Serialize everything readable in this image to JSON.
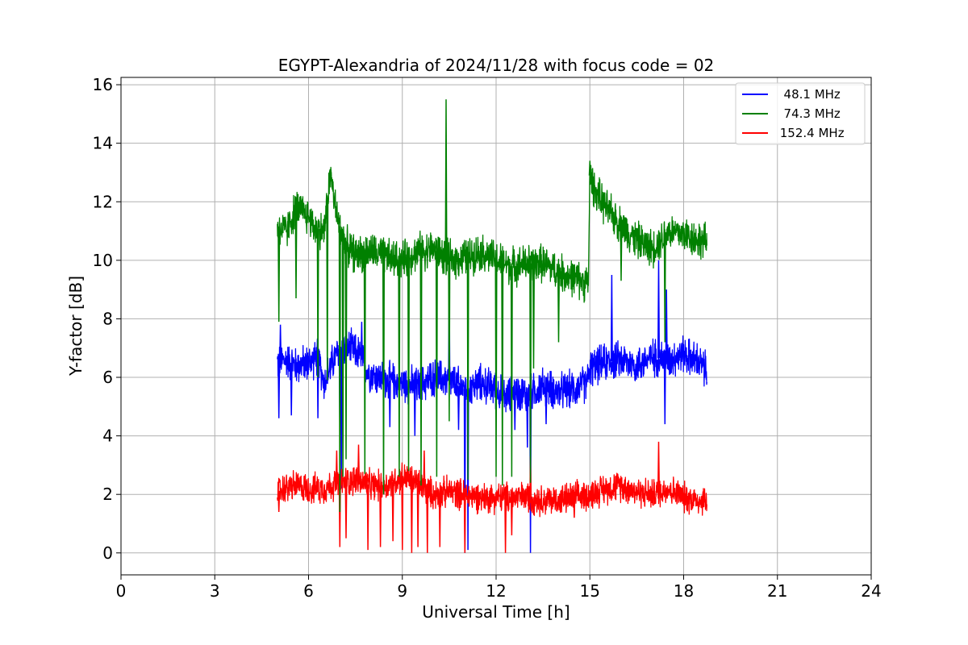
{
  "chart_data": {
    "type": "line",
    "title": "EGYPT-Alexandria of 2024/11/28 with focus code = 02",
    "xlabel": "Universal Time [h]",
    "ylabel": "Y-factor [dB]",
    "xlim": [
      0,
      24
    ],
    "ylim": [
      -0.75,
      16.25
    ],
    "xticks": [
      0,
      3,
      6,
      9,
      12,
      15,
      18,
      21,
      24
    ],
    "xtick_labels": [
      "0",
      "3",
      "6",
      "9",
      "12",
      "15",
      "18",
      "21",
      "24"
    ],
    "yticks": [
      0,
      2,
      4,
      6,
      8,
      10,
      12,
      14,
      16
    ],
    "ytick_labels": [
      "0",
      "2",
      "4",
      "6",
      "8",
      "10",
      "12",
      "14",
      "16"
    ],
    "grid": true,
    "legend": "top-right",
    "series": [
      {
        "name": "  48.1 MHz",
        "color": "#0000ff",
        "x": [
          5.0,
          5.3,
          5.6,
          6.0,
          6.3,
          6.5,
          6.8,
          7.0,
          7.3,
          7.6,
          7.9,
          8.2,
          8.5,
          9.0,
          9.5,
          10.0,
          10.5,
          11.0,
          11.5,
          12.0,
          12.3,
          12.6,
          13.0,
          13.5,
          14.0,
          14.5,
          14.9,
          15.0,
          15.5,
          16.0,
          16.5,
          17.0,
          17.5,
          18.0,
          18.5,
          18.75
        ],
        "y": [
          6.5,
          6.6,
          6.4,
          6.5,
          6.7,
          5.8,
          6.6,
          6.9,
          7.0,
          6.8,
          6.2,
          6.0,
          5.9,
          5.8,
          5.7,
          6.0,
          5.9,
          5.6,
          5.8,
          5.6,
          5.3,
          5.5,
          5.4,
          5.7,
          5.5,
          5.6,
          5.8,
          6.3,
          6.5,
          6.6,
          6.4,
          6.7,
          6.6,
          6.8,
          6.5,
          6.2
        ],
        "spikes": [
          {
            "x": 5.05,
            "y": 4.6
          },
          {
            "x": 5.1,
            "y": 7.8
          },
          {
            "x": 5.45,
            "y": 4.7
          },
          {
            "x": 6.3,
            "y": 4.6
          },
          {
            "x": 7.0,
            "y": 4.3
          },
          {
            "x": 7.05,
            "y": 2.2
          },
          {
            "x": 7.7,
            "y": 7.9
          },
          {
            "x": 8.6,
            "y": 4.3
          },
          {
            "x": 9.4,
            "y": 4.0
          },
          {
            "x": 10.5,
            "y": 9.4
          },
          {
            "x": 10.8,
            "y": 4.2
          },
          {
            "x": 11.0,
            "y": 0.0
          },
          {
            "x": 11.1,
            "y": 0.1
          },
          {
            "x": 12.6,
            "y": 4.2
          },
          {
            "x": 13.1,
            "y": 0.0
          },
          {
            "x": 13.0,
            "y": 3.6
          },
          {
            "x": 13.6,
            "y": 4.4
          },
          {
            "x": 15.7,
            "y": 9.5
          },
          {
            "x": 17.2,
            "y": 10.0
          },
          {
            "x": 17.4,
            "y": 4.4
          },
          {
            "x": 17.45,
            "y": 9.0
          }
        ]
      },
      {
        "name": "  74.3 MHz",
        "color": "#008000",
        "x": [
          5.0,
          5.3,
          5.6,
          6.0,
          6.2,
          6.5,
          6.7,
          6.9,
          7.2,
          7.5,
          8.0,
          8.5,
          9.0,
          9.5,
          10.0,
          10.5,
          11.0,
          11.5,
          12.0,
          12.5,
          13.0,
          13.5,
          14.0,
          14.5,
          14.95,
          15.0,
          15.2,
          15.5,
          16.0,
          16.5,
          17.0,
          17.5,
          18.0,
          18.5,
          18.75
        ],
        "y": [
          11.1,
          11.0,
          11.8,
          11.5,
          11.1,
          11.0,
          13.0,
          11.5,
          10.5,
          10.2,
          10.3,
          10.1,
          10.0,
          10.3,
          10.4,
          10.0,
          10.1,
          10.3,
          10.0,
          9.8,
          9.9,
          9.9,
          9.6,
          9.4,
          9.2,
          12.9,
          12.3,
          11.8,
          11.2,
          10.7,
          10.4,
          11.0,
          10.9,
          10.7,
          10.6
        ],
        "spikes": [
          {
            "x": 5.05,
            "y": 7.9
          },
          {
            "x": 5.6,
            "y": 8.7
          },
          {
            "x": 6.3,
            "y": 6.0
          },
          {
            "x": 6.6,
            "y": 5.9
          },
          {
            "x": 7.0,
            "y": 1.4
          },
          {
            "x": 7.1,
            "y": 2.6
          },
          {
            "x": 7.2,
            "y": 3.2
          },
          {
            "x": 7.8,
            "y": 2.7
          },
          {
            "x": 8.4,
            "y": 2.0
          },
          {
            "x": 8.9,
            "y": 2.6
          },
          {
            "x": 9.2,
            "y": 2.8
          },
          {
            "x": 9.6,
            "y": 2.3
          },
          {
            "x": 10.1,
            "y": 2.6
          },
          {
            "x": 10.4,
            "y": 15.5
          },
          {
            "x": 10.5,
            "y": 4.5
          },
          {
            "x": 11.1,
            "y": 2.5
          },
          {
            "x": 12.0,
            "y": 2.6
          },
          {
            "x": 12.2,
            "y": 2.3
          },
          {
            "x": 12.5,
            "y": 2.6
          },
          {
            "x": 13.1,
            "y": 2.4
          },
          {
            "x": 13.2,
            "y": 6.3
          },
          {
            "x": 14.0,
            "y": 7.2
          },
          {
            "x": 15.0,
            "y": 13.4
          },
          {
            "x": 16.0,
            "y": 9.3
          },
          {
            "x": 17.4,
            "y": 7.2
          }
        ]
      },
      {
        "name": " 152.4 MHz",
        "color": "#ff0000",
        "x": [
          5.0,
          5.5,
          6.0,
          6.5,
          7.0,
          7.5,
          8.0,
          8.5,
          9.0,
          9.5,
          10.0,
          10.5,
          11.0,
          11.5,
          12.0,
          12.5,
          13.0,
          13.5,
          14.0,
          14.5,
          15.0,
          15.5,
          16.0,
          16.5,
          17.0,
          17.5,
          18.0,
          18.5,
          18.75
        ],
        "y": [
          2.1,
          2.3,
          2.2,
          2.2,
          2.4,
          2.5,
          2.3,
          2.3,
          2.6,
          2.4,
          2.0,
          2.1,
          2.0,
          1.9,
          1.9,
          1.9,
          1.9,
          1.8,
          1.8,
          1.9,
          2.0,
          2.2,
          2.3,
          2.1,
          2.0,
          2.2,
          1.9,
          1.8,
          1.8
        ],
        "spikes": [
          {
            "x": 5.05,
            "y": 1.4
          },
          {
            "x": 6.9,
            "y": 3.5
          },
          {
            "x": 7.0,
            "y": 0.2
          },
          {
            "x": 7.2,
            "y": 0.5
          },
          {
            "x": 7.6,
            "y": 3.7
          },
          {
            "x": 7.9,
            "y": 0.1
          },
          {
            "x": 8.3,
            "y": 0.2
          },
          {
            "x": 8.7,
            "y": 0.4
          },
          {
            "x": 9.0,
            "y": 0.1
          },
          {
            "x": 9.3,
            "y": 0.0
          },
          {
            "x": 9.5,
            "y": 0.2
          },
          {
            "x": 9.7,
            "y": 3.5
          },
          {
            "x": 9.8,
            "y": 0.0
          },
          {
            "x": 10.2,
            "y": 0.2
          },
          {
            "x": 11.0,
            "y": 0.0
          },
          {
            "x": 12.3,
            "y": 0.0
          },
          {
            "x": 12.5,
            "y": 0.6
          },
          {
            "x": 13.1,
            "y": 3.3
          },
          {
            "x": 14.5,
            "y": 1.2
          },
          {
            "x": 17.2,
            "y": 3.8
          }
        ]
      }
    ]
  }
}
